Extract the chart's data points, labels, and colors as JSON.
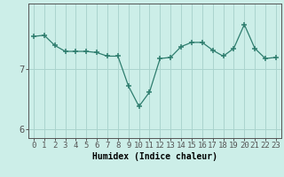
{
  "xlabel": "Humidex (Indice chaleur)",
  "ylabel": "",
  "x_values": [
    0,
    1,
    2,
    3,
    4,
    5,
    6,
    7,
    8,
    9,
    10,
    11,
    12,
    13,
    14,
    15,
    16,
    17,
    18,
    19,
    20,
    21,
    22,
    23
  ],
  "y_values": [
    7.55,
    7.57,
    7.4,
    7.3,
    7.3,
    7.3,
    7.28,
    7.22,
    7.22,
    6.72,
    6.38,
    6.62,
    7.18,
    7.2,
    7.38,
    7.45,
    7.45,
    7.32,
    7.22,
    7.35,
    7.75,
    7.35,
    7.18,
    7.2
  ],
  "line_color": "#2e7d6e",
  "marker": "+",
  "marker_size": 4,
  "bg_color": "#cceee8",
  "grid_color": "#aad4ce",
  "axis_color": "#555555",
  "yticks": [
    6,
    7
  ],
  "ylim": [
    5.85,
    8.1
  ],
  "xlim": [
    -0.5,
    23.5
  ],
  "label_fontsize": 7,
  "tick_fontsize": 6.5
}
